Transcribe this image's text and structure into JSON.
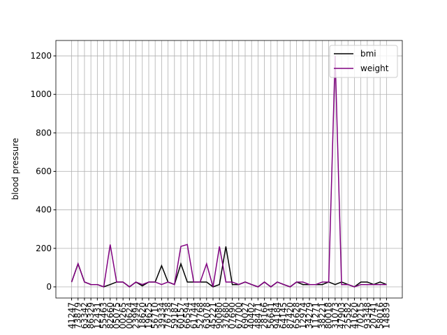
{
  "chart_data": {
    "type": "line",
    "y_label": "blood pressure",
    "categories": [
      "41247",
      "73879",
      "63342",
      "86329",
      "12431",
      "55463",
      "82660",
      "05075",
      "00265",
      "00624",
      "23994",
      "18620",
      "19625",
      "56710",
      "39334",
      "76738",
      "59187",
      "60157",
      "66594",
      "61744",
      "52768",
      "63078",
      "45221",
      "90080",
      "37680",
      "07690",
      "67700",
      "69027",
      "40402",
      "48471",
      "28166",
      "56641",
      "94184",
      "64145",
      "87420",
      "65628",
      "12974",
      "34279",
      "11271",
      "38221",
      "80018",
      "31073",
      "47903",
      "25582",
      "41620",
      "70215",
      "93348",
      "20741",
      "58016",
      "14839"
    ],
    "series": [
      {
        "name": "bmi",
        "color": "#000000",
        "values": [
          25,
          120,
          25,
          12,
          12,
          0,
          12,
          25,
          25,
          0,
          25,
          5,
          25,
          25,
          110,
          25,
          12,
          120,
          25,
          25,
          25,
          25,
          0,
          12,
          210,
          12,
          12,
          25,
          12,
          0,
          25,
          0,
          25,
          12,
          0,
          25,
          12,
          12,
          12,
          12,
          25,
          12,
          25,
          12,
          0,
          25,
          25,
          12,
          25,
          12
        ]
      },
      {
        "name": "weight",
        "color": "#800080",
        "values": [
          25,
          120,
          25,
          12,
          12,
          0,
          220,
          25,
          25,
          0,
          25,
          12,
          25,
          25,
          12,
          25,
          12,
          210,
          220,
          25,
          25,
          120,
          0,
          210,
          25,
          25,
          12,
          25,
          12,
          0,
          25,
          0,
          25,
          12,
          0,
          25,
          25,
          12,
          12,
          25,
          25,
          1200,
          12,
          12,
          0,
          12,
          12,
          12,
          12,
          12
        ]
      }
    ],
    "ylim": [
      -58,
      1280
    ],
    "yticks": [
      0,
      200,
      400,
      600,
      800,
      1000,
      1200
    ],
    "grid": true,
    "legend": "upper right"
  }
}
